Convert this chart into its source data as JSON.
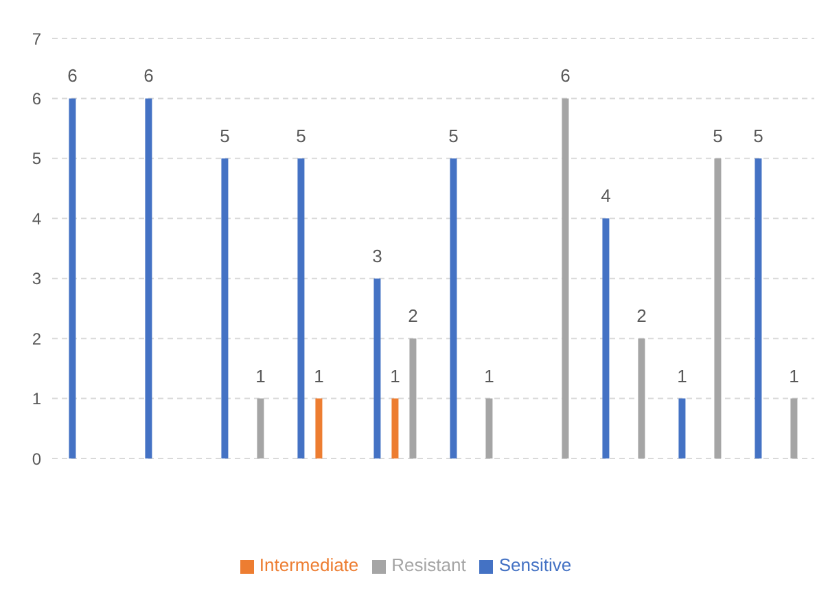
{
  "chart_data": {
    "type": "bar",
    "categories": [
      null,
      null,
      null,
      null,
      null,
      null,
      null,
      null,
      null,
      null
    ],
    "series": [
      {
        "name": "Sensitive",
        "color": "#4472c4",
        "values": [
          6,
          6,
          5,
          5,
          3,
          5,
          null,
          4,
          1,
          5
        ]
      },
      {
        "name": "Intermediate",
        "color": "#ed7d31",
        "values": [
          null,
          null,
          null,
          1,
          1,
          null,
          null,
          null,
          null,
          null
        ]
      },
      {
        "name": "Resistant",
        "color": "#a5a5a5",
        "values": [
          null,
          null,
          1,
          null,
          2,
          1,
          6,
          2,
          5,
          1
        ]
      }
    ],
    "ylim": [
      0,
      7
    ],
    "yticks": [
      0,
      1,
      2,
      3,
      4,
      5,
      6,
      7
    ],
    "grid": "y",
    "legend": "bottom",
    "data_labels": true
  }
}
